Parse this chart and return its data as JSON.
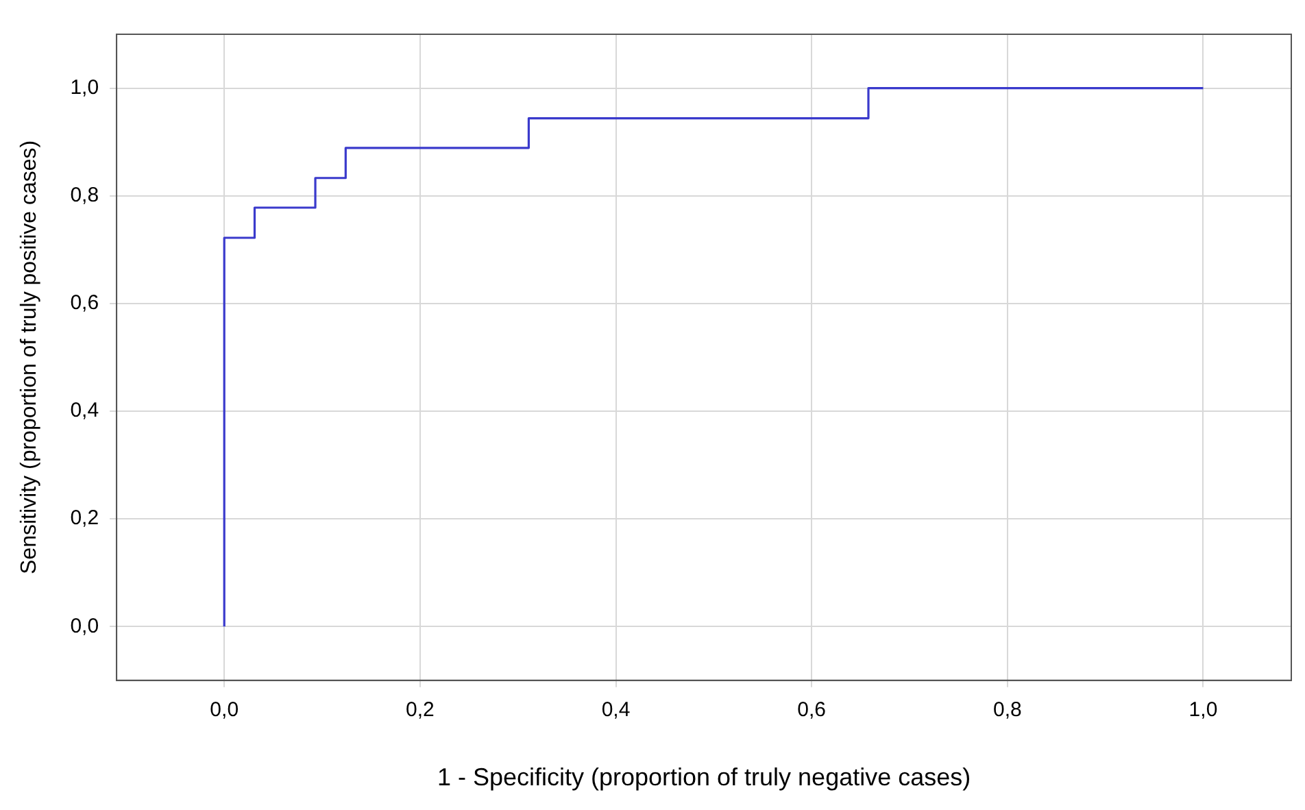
{
  "chart_data": {
    "type": "step",
    "xlabel": "1 - Specificity (proportion of truly negative cases)",
    "ylabel": "Sensitivity (proportion of truly positive cases)",
    "x": [
      0,
      0,
      0.031,
      0.093,
      0.124,
      0.311,
      0.658,
      1.0
    ],
    "series": [
      {
        "color": "#3a3acc",
        "values": [
          0,
          0.722,
          0.778,
          0.833,
          0.889,
          0.944,
          1.0,
          1.0
        ]
      }
    ],
    "xlim": [
      -0.11,
      1.09
    ],
    "ylim": [
      -0.1,
      1.1
    ],
    "xticks": [
      {
        "value": 0,
        "label": "0,0"
      },
      {
        "value": 0.2,
        "label": "0,2"
      },
      {
        "value": 0.4,
        "label": "0,4"
      },
      {
        "value": 0.6,
        "label": "0,6"
      },
      {
        "value": 0.8,
        "label": "0,8"
      },
      {
        "value": 1.0,
        "label": "1,0"
      }
    ],
    "yticks": [
      {
        "value": 0,
        "label": "0,0"
      },
      {
        "value": 0.2,
        "label": "0,2"
      },
      {
        "value": 0.4,
        "label": "0,4"
      },
      {
        "value": 0.6,
        "label": "0,6"
      },
      {
        "value": 0.8,
        "label": "0,8"
      },
      {
        "value": 1.0,
        "label": "1,0"
      }
    ],
    "grid": true,
    "legend": false,
    "marker": "none",
    "line_style": "solid"
  }
}
